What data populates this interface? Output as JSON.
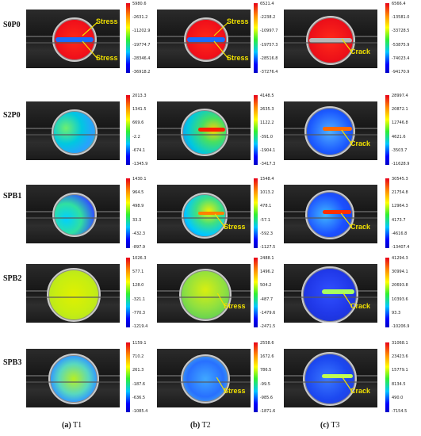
{
  "rows": [
    "S0P0",
    "S2P0",
    "SPB1",
    "SPB2",
    "SPB3"
  ],
  "captions": [
    {
      "letter": "(a)",
      "text": "T1"
    },
    {
      "letter": "(b)",
      "text": "T2"
    },
    {
      "letter": "(c)",
      "text": "T3"
    }
  ],
  "panels": [
    [
      {
        "ticks": [
          "5980.6",
          "-2631.2",
          "-11202.9",
          "-19774.7",
          "-28346.4",
          "-36918.2"
        ],
        "labels": [
          "Stress",
          "Stress"
        ]
      },
      {
        "ticks": [
          "6521.4",
          "-2238.2",
          "-10997.7",
          "-19757.3",
          "-28516.8",
          "-37276.4"
        ],
        "labels": [
          "Stress",
          "Stress"
        ]
      },
      {
        "ticks": [
          "6566.4",
          "-13581.0",
          "-33728.5",
          "-53875.9",
          "-74023.4",
          "-94170.9"
        ],
        "labels": [
          "Crack"
        ]
      }
    ],
    [
      {
        "ticks": [
          "2013.3",
          "1341.5",
          "669.6",
          "-2.2",
          "-674.1",
          "-1345.9"
        ],
        "labels": []
      },
      {
        "ticks": [
          "4148.5",
          "2635.3",
          "1122.2",
          "-391.0",
          "-1904.1",
          "-3417.3"
        ],
        "labels": []
      },
      {
        "ticks": [
          "28997.4",
          "20872.1",
          "12746.8",
          "4621.6",
          "-3503.7",
          "-11628.9"
        ],
        "labels": [
          "Crack"
        ]
      }
    ],
    [
      {
        "ticks": [
          "1430.1",
          "964.5",
          "498.9",
          "33.3",
          "-432.3",
          "-897.9"
        ],
        "labels": []
      },
      {
        "ticks": [
          "1548.4",
          "1013.2",
          "478.1",
          "-57.1",
          "-592.3",
          "-1127.5"
        ],
        "labels": [
          "Stress"
        ]
      },
      {
        "ticks": [
          "30545.3",
          "21754.8",
          "12964.3",
          "4173.7",
          "-4616.8",
          "-13407.4"
        ],
        "labels": [
          "Crack"
        ]
      }
    ],
    [
      {
        "ticks": [
          "1026.3",
          "577.1",
          "128.0",
          "-321.1",
          "-770.3",
          "-1219.4"
        ],
        "labels": []
      },
      {
        "ticks": [
          "2488.1",
          "1496.2",
          "504.2",
          "-487.7",
          "-1479.6",
          "-2471.5"
        ],
        "labels": [
          "Stress"
        ]
      },
      {
        "ticks": [
          "41294.3",
          "30994.1",
          "20693.8",
          "10393.6",
          "93.3",
          "-10206.9"
        ],
        "labels": [
          "Crack"
        ]
      }
    ],
    [
      {
        "ticks": [
          "1159.1",
          "710.2",
          "261.3",
          "-187.6",
          "-636.5",
          "-1085.4"
        ],
        "labels": []
      },
      {
        "ticks": [
          "2558.6",
          "1672.6",
          "786.5",
          "-99.5",
          "-985.6",
          "-1871.6"
        ],
        "labels": [
          "Stress"
        ]
      },
      {
        "ticks": [
          "31068.1",
          "23423.6",
          "15779.1",
          "8134.5",
          "490.0",
          "-7154.5"
        ],
        "labels": [
          "Crack"
        ]
      }
    ]
  ],
  "colors": {
    "annotation": "#f0e000",
    "frame": "#1f1f1f"
  }
}
